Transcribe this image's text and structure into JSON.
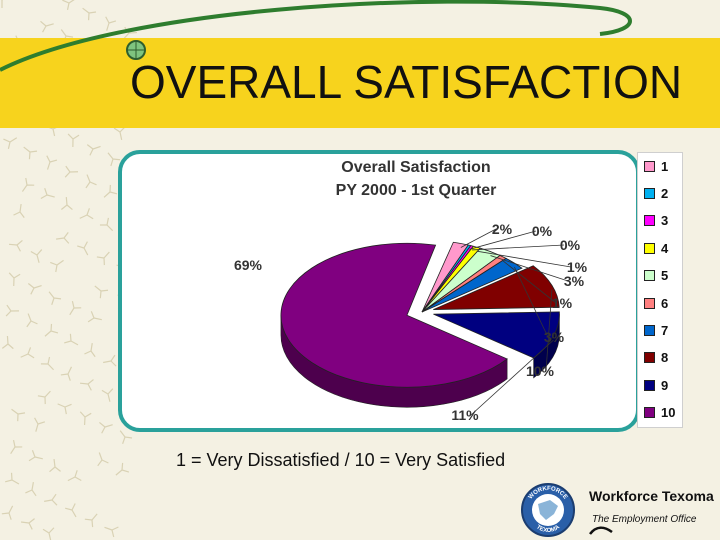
{
  "slide": {
    "title": "OVERALL SATISFACTION",
    "caption": "1 = Very Dissatisfied / 10 = Very Satisfied"
  },
  "branding": {
    "org_name": "Workforce Texoma",
    "tagline": "The Employment Office",
    "seal_text_top": "WORKFORCE",
    "seal_text_bottom": "TEXOMA"
  },
  "colors": {
    "title_band": "#f7d31d",
    "frame": "#2aa19b",
    "swoosh": "#2e7d2e"
  },
  "chart_data": {
    "type": "pie",
    "title": "Overall Satisfaction",
    "subtitle": "PY 2000 - 1st Quarter",
    "legend_position": "right",
    "three_d": true,
    "categories": [
      "1",
      "2",
      "3",
      "4",
      "5",
      "6",
      "7",
      "8",
      "9",
      "10"
    ],
    "values": [
      2,
      0,
      0,
      1,
      3,
      1,
      3,
      10,
      11,
      69
    ],
    "labels": [
      "2%",
      "0%",
      "0%",
      "1%",
      "3%",
      "1%",
      "3%",
      "10%",
      "11%",
      "69%"
    ],
    "colors": [
      "#ff99cc",
      "#00b0f0",
      "#ff00ff",
      "#ffff00",
      "#ccffcc",
      "#ff8080",
      "#0066cc",
      "#800000",
      "#000080",
      "#800080"
    ],
    "exploded": [
      false,
      false,
      false,
      false,
      false,
      false,
      false,
      true,
      true,
      true
    ]
  }
}
